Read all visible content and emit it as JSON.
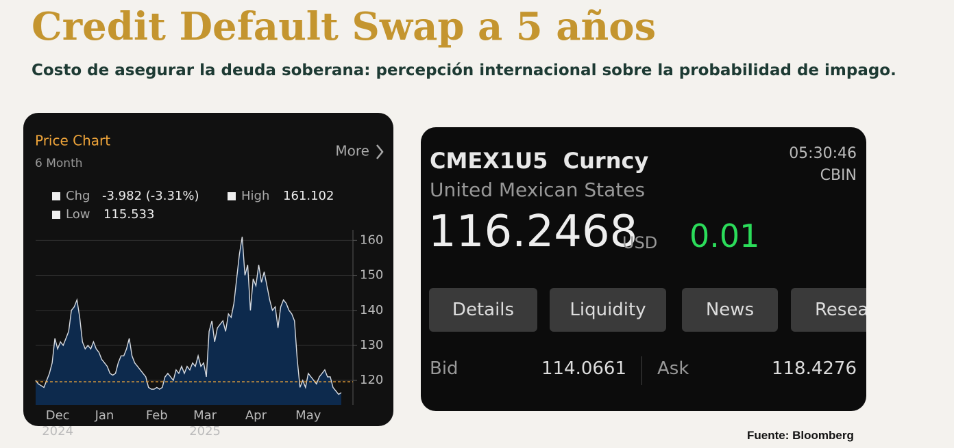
{
  "header": {
    "title": "Credit Default Swap a 5 años",
    "subtitle": "Costo de asegurar la deuda soberana: percepción internacional sobre la probabilidad de impago."
  },
  "chart_panel": {
    "title": "Price Chart",
    "period": "6 Month",
    "more": "More",
    "stats": [
      {
        "name": "Chg",
        "value": "-3.982 (-3.31%)"
      },
      {
        "name": "High",
        "value": "161.102"
      },
      {
        "name": "Low",
        "value": "115.533"
      }
    ]
  },
  "chart_data": {
    "type": "area",
    "values": [
      120,
      119,
      118.5,
      118,
      120,
      122,
      125,
      132,
      129,
      131,
      130,
      132,
      134,
      140,
      141,
      143,
      138,
      131,
      129,
      130,
      129,
      131,
      129,
      128,
      126,
      125,
      124,
      122,
      121.5,
      122,
      125,
      127,
      127,
      129,
      132,
      127,
      125,
      124,
      123,
      122,
      121,
      118,
      117.5,
      117.5,
      118,
      117.5,
      118,
      121,
      122,
      121,
      120,
      123,
      122,
      124,
      122,
      124,
      123,
      125,
      124,
      127,
      124,
      125,
      121,
      134,
      137,
      131,
      135,
      136,
      137,
      134,
      139,
      138,
      142,
      149,
      156,
      161,
      150,
      153,
      140,
      149,
      147,
      153,
      148,
      151,
      147,
      143,
      140,
      141,
      135,
      141,
      143,
      142,
      140,
      139,
      137,
      126,
      118,
      120,
      118,
      122,
      121,
      120,
      119,
      121,
      122,
      123,
      121,
      121,
      118,
      117,
      116,
      116.5
    ],
    "color": "#0d2a4d",
    "line_color": "#d8dce2",
    "reference_line": {
      "value": 119.6,
      "color": "#f0a53a"
    },
    "ylim": [
      113,
      163
    ],
    "yticks": [
      120,
      130,
      140,
      150,
      160
    ],
    "grid": true,
    "xticks": [
      {
        "value": 8,
        "label": "Dec"
      },
      {
        "value": 25,
        "label": "Jan"
      },
      {
        "value": 44,
        "label": "Feb"
      },
      {
        "value": 61.5,
        "label": "Mar"
      },
      {
        "value": 80,
        "label": "Apr"
      },
      {
        "value": 99,
        "label": "May"
      }
    ],
    "year_labels": [
      {
        "value": 8,
        "label": "2024"
      },
      {
        "value": 61.5,
        "label": "2025"
      }
    ]
  },
  "quote": {
    "ticker": "CMEX1U5  Curncy",
    "time": "05:30:46",
    "source": "CBIN",
    "name": "United Mexican States",
    "price": "116.2468",
    "currency": "USD",
    "change": "0.01",
    "buttons": [
      "Details",
      "Liquidity",
      "News",
      "Resea"
    ],
    "bid_label": "Bid",
    "bid": "114.0661",
    "ask_label": "Ask",
    "ask": "118.4276"
  },
  "footer": {
    "source": "Fuente: Bloomberg"
  }
}
